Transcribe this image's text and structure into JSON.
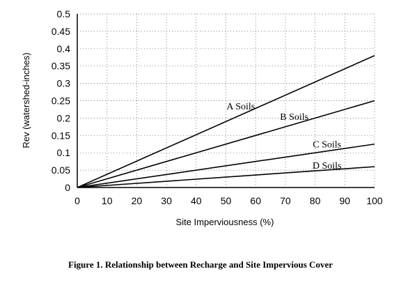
{
  "chart_data": {
    "type": "line",
    "xlabel": "Site Imperviousness (%)",
    "ylabel": "Rev (watershed-inches)",
    "xlim": [
      0,
      100
    ],
    "ylim": [
      0,
      0.5
    ],
    "x_ticks": [
      "0",
      "10",
      "20",
      "30",
      "40",
      "50",
      "60",
      "70",
      "80",
      "90",
      "100"
    ],
    "y_ticks": [
      "0",
      "0.05",
      "0.1",
      "0.15",
      "0.2",
      "0.25",
      "0.3",
      "0.35",
      "0.4",
      "0.45",
      "0.5"
    ],
    "grid": true,
    "series": [
      {
        "name": "A Soils",
        "x": [
          0,
          100
        ],
        "y": [
          0,
          0.38
        ]
      },
      {
        "name": "B Soils",
        "x": [
          0,
          100
        ],
        "y": [
          0,
          0.25
        ]
      },
      {
        "name": "C Soils",
        "x": [
          0,
          100
        ],
        "y": [
          0,
          0.125
        ]
      },
      {
        "name": "D Soils",
        "x": [
          0,
          100
        ],
        "y": [
          0,
          0.06
        ]
      }
    ]
  },
  "caption": "Figure 1.  Relationship between Recharge and Site Impervious Cover"
}
